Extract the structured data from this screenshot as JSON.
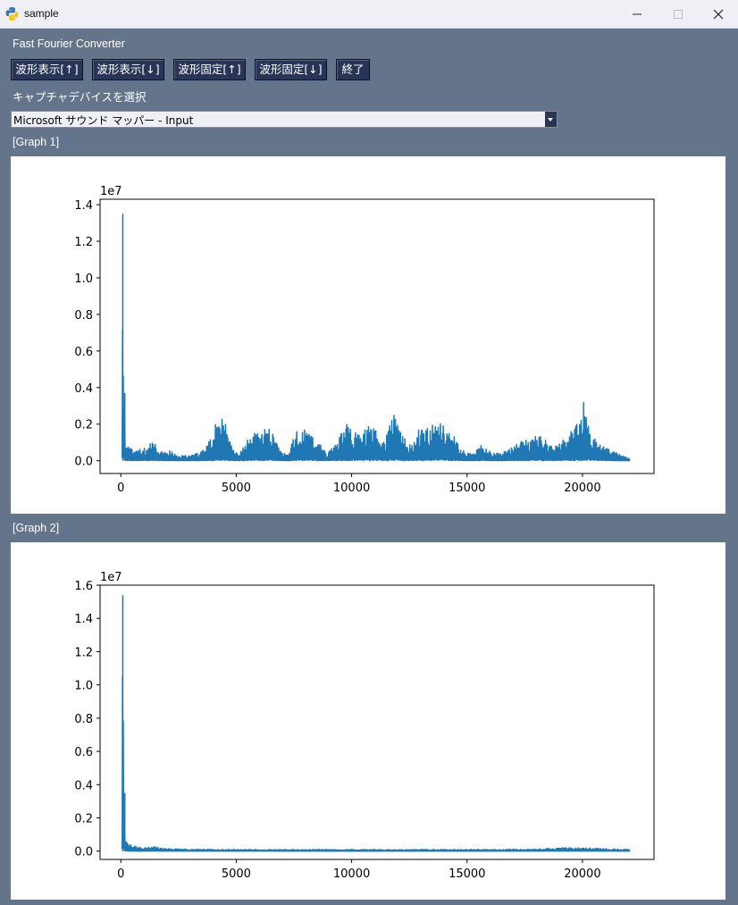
{
  "window": {
    "title": "sample",
    "icon": "python-icon",
    "controls": [
      "minimize-icon",
      "maximize-icon",
      "close-icon"
    ]
  },
  "app": {
    "label": "Fast Fourier Converter"
  },
  "toolbar": {
    "buttons": [
      {
        "label": "波形表示[↑]"
      },
      {
        "label": "波形表示[↓]"
      },
      {
        "label": "波形固定[↑]"
      },
      {
        "label": "波形固定[↓]"
      },
      {
        "label": "終了"
      }
    ]
  },
  "device": {
    "label": "キャプチャデバイスを選択",
    "selected": "Microsoft サウンド マッパー - Input"
  },
  "graphs": [
    {
      "label": "[Graph 1]"
    },
    {
      "label": "[Graph 2]"
    }
  ],
  "chart_data": [
    {
      "type": "line",
      "title": "",
      "xlabel": "",
      "ylabel": "",
      "y_offset_label": "1e7",
      "xlim": [
        -900,
        23100
      ],
      "ylim": [
        -0.07,
        1.43
      ],
      "xticks": [
        0,
        5000,
        10000,
        15000,
        20000
      ],
      "xtick_labels": [
        "0",
        "5000",
        "10000",
        "15000",
        "20000"
      ],
      "yticks": [
        0.0,
        0.2,
        0.4,
        0.6,
        0.8,
        1.0,
        1.2,
        1.4
      ],
      "ytick_labels": [
        "0.0",
        "0.2",
        "0.4",
        "0.6",
        "0.8",
        "1.0",
        "1.2",
        "1.4"
      ],
      "color": "#1f77b4",
      "grid": false,
      "series_points": [
        [
          43,
          0.05
        ],
        [
          86,
          1.35
        ],
        [
          140,
          0.07
        ],
        [
          172,
          0.37
        ],
        [
          215,
          0.08
        ],
        [
          400,
          0.07
        ],
        [
          600,
          0.06
        ],
        [
          1000,
          0.07
        ],
        [
          1200,
          0.08
        ],
        [
          1400,
          0.12
        ],
        [
          1600,
          0.06
        ],
        [
          2000,
          0.04
        ],
        [
          2200,
          0.07
        ],
        [
          2500,
          0.03
        ],
        [
          3000,
          0.03
        ],
        [
          3500,
          0.05
        ],
        [
          3900,
          0.12
        ],
        [
          4100,
          0.2
        ],
        [
          4300,
          0.28
        ],
        [
          4450,
          0.25
        ],
        [
          4700,
          0.14
        ],
        [
          4900,
          0.05
        ],
        [
          5100,
          0.04
        ],
        [
          5400,
          0.1
        ],
        [
          5700,
          0.15
        ],
        [
          6000,
          0.15
        ],
        [
          6300,
          0.18
        ],
        [
          6500,
          0.17
        ],
        [
          6800,
          0.09
        ],
        [
          7000,
          0.04
        ],
        [
          7300,
          0.05
        ],
        [
          7500,
          0.14
        ],
        [
          7800,
          0.2
        ],
        [
          8000,
          0.17
        ],
        [
          8300,
          0.14
        ],
        [
          8600,
          0.1
        ],
        [
          8900,
          0.04
        ],
        [
          9200,
          0.08
        ],
        [
          9500,
          0.14
        ],
        [
          9800,
          0.2
        ],
        [
          10100,
          0.18
        ],
        [
          10400,
          0.14
        ],
        [
          10700,
          0.2
        ],
        [
          11000,
          0.18
        ],
        [
          11300,
          0.1
        ],
        [
          11500,
          0.14
        ],
        [
          11800,
          0.26
        ],
        [
          12000,
          0.2
        ],
        [
          12300,
          0.15
        ],
        [
          12600,
          0.08
        ],
        [
          12900,
          0.17
        ],
        [
          13200,
          0.17
        ],
        [
          13500,
          0.2
        ],
        [
          13800,
          0.22
        ],
        [
          14000,
          0.19
        ],
        [
          14300,
          0.16
        ],
        [
          14600,
          0.11
        ],
        [
          14900,
          0.05
        ],
        [
          15300,
          0.04
        ],
        [
          15600,
          0.09
        ],
        [
          16000,
          0.06
        ],
        [
          16400,
          0.04
        ],
        [
          16800,
          0.06
        ],
        [
          17200,
          0.1
        ],
        [
          17600,
          0.12
        ],
        [
          18000,
          0.14
        ],
        [
          18300,
          0.13
        ],
        [
          18700,
          0.08
        ],
        [
          19000,
          0.1
        ],
        [
          19300,
          0.14
        ],
        [
          19600,
          0.18
        ],
        [
          19900,
          0.25
        ],
        [
          20050,
          0.32
        ],
        [
          20300,
          0.18
        ],
        [
          20700,
          0.1
        ],
        [
          21000,
          0.07
        ],
        [
          21400,
          0.05
        ],
        [
          21700,
          0.03
        ],
        [
          22050,
          0.01
        ]
      ]
    },
    {
      "type": "line",
      "title": "",
      "xlabel": "",
      "ylabel": "",
      "y_offset_label": "1e7",
      "xlim": [
        -900,
        23100
      ],
      "ylim": [
        -0.05,
        1.6
      ],
      "xticks": [
        0,
        5000,
        10000,
        15000,
        20000
      ],
      "xtick_labels": [
        "0",
        "5000",
        "10000",
        "15000",
        "20000"
      ],
      "yticks": [
        0.0,
        0.2,
        0.4,
        0.6,
        0.8,
        1.0,
        1.2,
        1.4,
        1.6
      ],
      "ytick_labels": [
        "0.0",
        "0.2",
        "0.4",
        "0.6",
        "0.8",
        "1.0",
        "1.2",
        "1.4",
        "1.6"
      ],
      "color": "#1f77b4",
      "grid": false,
      "series_points": [
        [
          43,
          0.02
        ],
        [
          86,
          1.54
        ],
        [
          140,
          0.04
        ],
        [
          172,
          0.35
        ],
        [
          215,
          0.06
        ],
        [
          400,
          0.04
        ],
        [
          700,
          0.03
        ],
        [
          1000,
          0.02
        ],
        [
          1400,
          0.03
        ],
        [
          1800,
          0.02
        ],
        [
          2200,
          0.015
        ],
        [
          3000,
          0.012
        ],
        [
          5000,
          0.01
        ],
        [
          10000,
          0.01
        ],
        [
          15000,
          0.01
        ],
        [
          18000,
          0.012
        ],
        [
          19000,
          0.02
        ],
        [
          20000,
          0.02
        ],
        [
          21000,
          0.015
        ],
        [
          22050,
          0.01
        ]
      ]
    }
  ]
}
